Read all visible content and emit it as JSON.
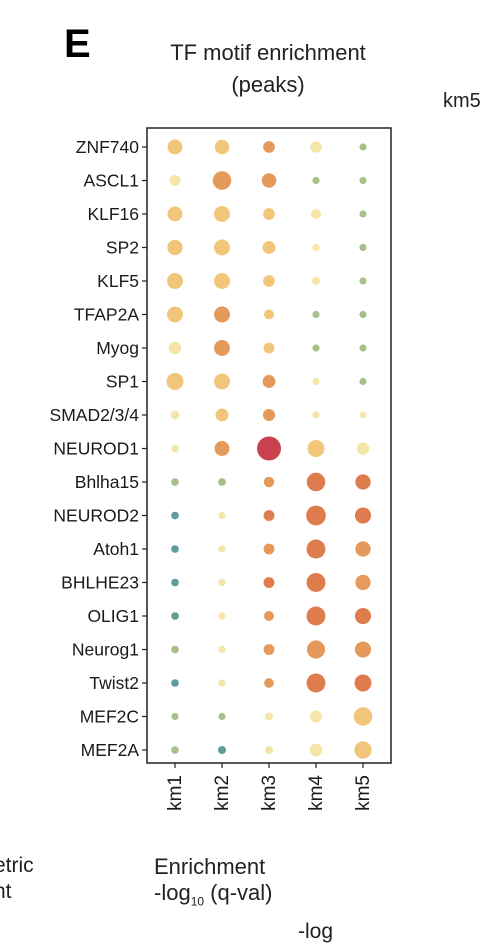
{
  "panel_letter": "E",
  "title_lines": [
    "TF motif enrichment",
    "(peaks)"
  ],
  "fragments": {
    "top_right": "km5",
    "left_1": "etric",
    "left_2": "nt",
    "bottom": "-log"
  },
  "legend": {
    "title": "Enrichment",
    "q_prefix": "-log",
    "q_sub": "10",
    "q_suffix": " (q-val)"
  },
  "colors": {
    "teal": "#5f9c9c",
    "green": "#a7c08a",
    "pale_yellow": "#f4e6a8",
    "light_orange": "#f2c67a",
    "orange": "#e59a5c",
    "dark_orange": "#de7c4e",
    "red": "#c8414d"
  },
  "chart_data": {
    "type": "dot",
    "columns": [
      "km1",
      "km2",
      "km3",
      "km4",
      "km5"
    ],
    "rows": [
      "ZNF740",
      "ASCL1",
      "KLF16",
      "SP2",
      "KLF5",
      "TFAP2A",
      "Myog",
      "SP1",
      "SMAD2/3/4",
      "NEUROD1",
      "Bhlha15",
      "NEUROD2",
      "Atoh1",
      "BHLHE23",
      "OLIG1",
      "Neurog1",
      "Twist2",
      "MEF2C",
      "MEF2A"
    ],
    "size_scale": "relative enrichment (0–1)",
    "sizes": [
      [
        0.5,
        0.48,
        0.34,
        0.32,
        0.12
      ],
      [
        0.3,
        0.68,
        0.48,
        0.12,
        0.12
      ],
      [
        0.5,
        0.55,
        0.34,
        0.26,
        0.12
      ],
      [
        0.52,
        0.55,
        0.4,
        0.12,
        0.12
      ],
      [
        0.55,
        0.55,
        0.34,
        0.16,
        0.12
      ],
      [
        0.55,
        0.55,
        0.26,
        0.12,
        0.12
      ],
      [
        0.38,
        0.55,
        0.3,
        0.12,
        0.12
      ],
      [
        0.6,
        0.55,
        0.4,
        0.12,
        0.12
      ],
      [
        0.2,
        0.4,
        0.36,
        0.12,
        0.1
      ],
      [
        0.14,
        0.5,
        0.95,
        0.6,
        0.38
      ],
      [
        0.14,
        0.14,
        0.28,
        0.68,
        0.52
      ],
      [
        0.14,
        0.12,
        0.3,
        0.74,
        0.56
      ],
      [
        0.14,
        0.12,
        0.3,
        0.7,
        0.52
      ],
      [
        0.14,
        0.12,
        0.3,
        0.7,
        0.52
      ],
      [
        0.14,
        0.12,
        0.26,
        0.7,
        0.56
      ],
      [
        0.14,
        0.12,
        0.3,
        0.66,
        0.56
      ],
      [
        0.14,
        0.12,
        0.24,
        0.7,
        0.6
      ],
      [
        0.12,
        0.12,
        0.16,
        0.36,
        0.68
      ],
      [
        0.14,
        0.16,
        0.16,
        0.4,
        0.62
      ]
    ],
    "colors": [
      [
        "light_orange",
        "light_orange",
        "orange",
        "pale_yellow",
        "green"
      ],
      [
        "pale_yellow",
        "orange",
        "orange",
        "green",
        "green"
      ],
      [
        "light_orange",
        "light_orange",
        "light_orange",
        "pale_yellow",
        "green"
      ],
      [
        "light_orange",
        "light_orange",
        "light_orange",
        "pale_yellow",
        "green"
      ],
      [
        "light_orange",
        "light_orange",
        "light_orange",
        "pale_yellow",
        "green"
      ],
      [
        "light_orange",
        "orange",
        "light_orange",
        "green",
        "green"
      ],
      [
        "pale_yellow",
        "orange",
        "light_orange",
        "green",
        "green"
      ],
      [
        "light_orange",
        "light_orange",
        "orange",
        "pale_yellow",
        "green"
      ],
      [
        "pale_yellow",
        "light_orange",
        "orange",
        "pale_yellow",
        "pale_yellow"
      ],
      [
        "pale_yellow",
        "orange",
        "red",
        "light_orange",
        "pale_yellow"
      ],
      [
        "green",
        "green",
        "orange",
        "dark_orange",
        "dark_orange"
      ],
      [
        "teal",
        "pale_yellow",
        "dark_orange",
        "dark_orange",
        "dark_orange"
      ],
      [
        "teal",
        "pale_yellow",
        "orange",
        "dark_orange",
        "orange"
      ],
      [
        "teal",
        "pale_yellow",
        "dark_orange",
        "dark_orange",
        "orange"
      ],
      [
        "teal",
        "pale_yellow",
        "orange",
        "dark_orange",
        "dark_orange"
      ],
      [
        "green",
        "pale_yellow",
        "orange",
        "orange",
        "orange"
      ],
      [
        "teal",
        "pale_yellow",
        "orange",
        "dark_orange",
        "dark_orange"
      ],
      [
        "green",
        "green",
        "pale_yellow",
        "pale_yellow",
        "light_orange"
      ],
      [
        "green",
        "teal",
        "pale_yellow",
        "pale_yellow",
        "light_orange"
      ]
    ]
  }
}
